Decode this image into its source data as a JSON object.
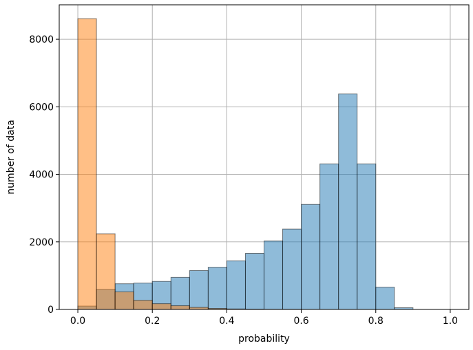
{
  "chart_data": {
    "type": "bar",
    "title": "",
    "xlabel": "probability",
    "ylabel": "number of data",
    "xlim": [
      -0.05,
      1.05
    ],
    "ylim": [
      0,
      9020
    ],
    "xticks": [
      0.0,
      0.2,
      0.4,
      0.6,
      0.8,
      1.0
    ],
    "xtick_labels": [
      "0.0",
      "0.2",
      "0.4",
      "0.6",
      "0.8",
      "1.0"
    ],
    "yticks": [
      0,
      2000,
      4000,
      6000,
      8000
    ],
    "ytick_labels": [
      "0",
      "2000",
      "4000",
      "6000",
      "8000"
    ],
    "grid": true,
    "bin_edges": [
      0.0,
      0.05,
      0.1,
      0.15,
      0.2,
      0.25,
      0.3,
      0.35,
      0.4,
      0.45,
      0.5,
      0.55,
      0.6,
      0.65,
      0.7,
      0.75,
      0.8,
      0.85,
      0.9,
      0.95,
      1.0
    ],
    "series": [
      {
        "color": "#1f77b4",
        "alpha": 0.5,
        "values": [
          100,
          600,
          760,
          780,
          830,
          950,
          1150,
          1250,
          1440,
          1660,
          2030,
          2380,
          3110,
          4310,
          6380,
          4310,
          660,
          50,
          0,
          0
        ]
      },
      {
        "color": "#ff7f0e",
        "alpha": 0.5,
        "values": [
          8610,
          2240,
          520,
          270,
          170,
          110,
          60,
          30,
          15,
          10,
          5,
          5,
          0,
          0,
          0,
          0,
          0,
          0,
          0,
          0
        ]
      }
    ]
  }
}
